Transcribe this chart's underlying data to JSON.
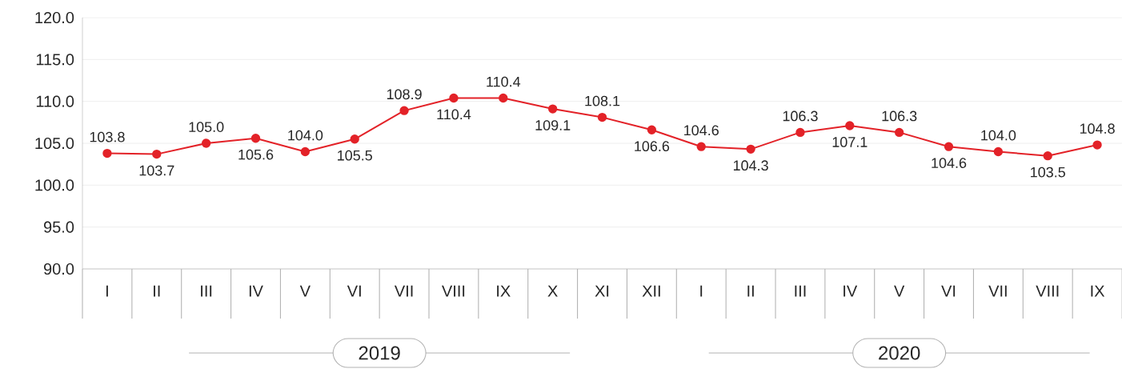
{
  "chart_data": {
    "type": "line",
    "categories": [
      "I",
      "II",
      "III",
      "IV",
      "V",
      "VI",
      "VII",
      "VIII",
      "IX",
      "X",
      "XI",
      "XII",
      "I",
      "II",
      "III",
      "IV",
      "V",
      "VI",
      "VII",
      "VIII",
      "IX"
    ],
    "series": [
      {
        "color": "#e32228",
        "values": [
          103.8,
          103.7,
          105.0,
          105.6,
          104.0,
          105.5,
          108.9,
          110.4,
          110.4,
          109.1,
          108.1,
          106.6,
          104.6,
          104.3,
          106.3,
          107.1,
          106.3,
          104.6,
          104.0,
          103.5,
          104.8
        ],
        "value_labels": [
          "103.8",
          "103.7",
          "105.0",
          "105.6",
          "104.0",
          "105.5",
          "108.9",
          "110.4",
          "110.4",
          "109.1",
          "108.1",
          "106.6",
          "104.6",
          "104.3",
          "106.3",
          "107.1",
          "106.3",
          "104.6",
          "104.0",
          "103.5",
          "104.8"
        ]
      }
    ],
    "ylim": [
      90,
      120
    ],
    "yticks": [
      {
        "value": 90,
        "label": "90.0"
      },
      {
        "value": 95,
        "label": "95.0"
      },
      {
        "value": 100,
        "label": "100.0"
      },
      {
        "value": 105,
        "label": "105.0"
      },
      {
        "value": 110,
        "label": "110.0"
      },
      {
        "value": 115,
        "label": "115.0"
      },
      {
        "value": 120,
        "label": "120.0"
      }
    ],
    "grid": "y",
    "marker": "circle",
    "line_style": "solid",
    "annotations": [
      "2019",
      "2020"
    ]
  }
}
